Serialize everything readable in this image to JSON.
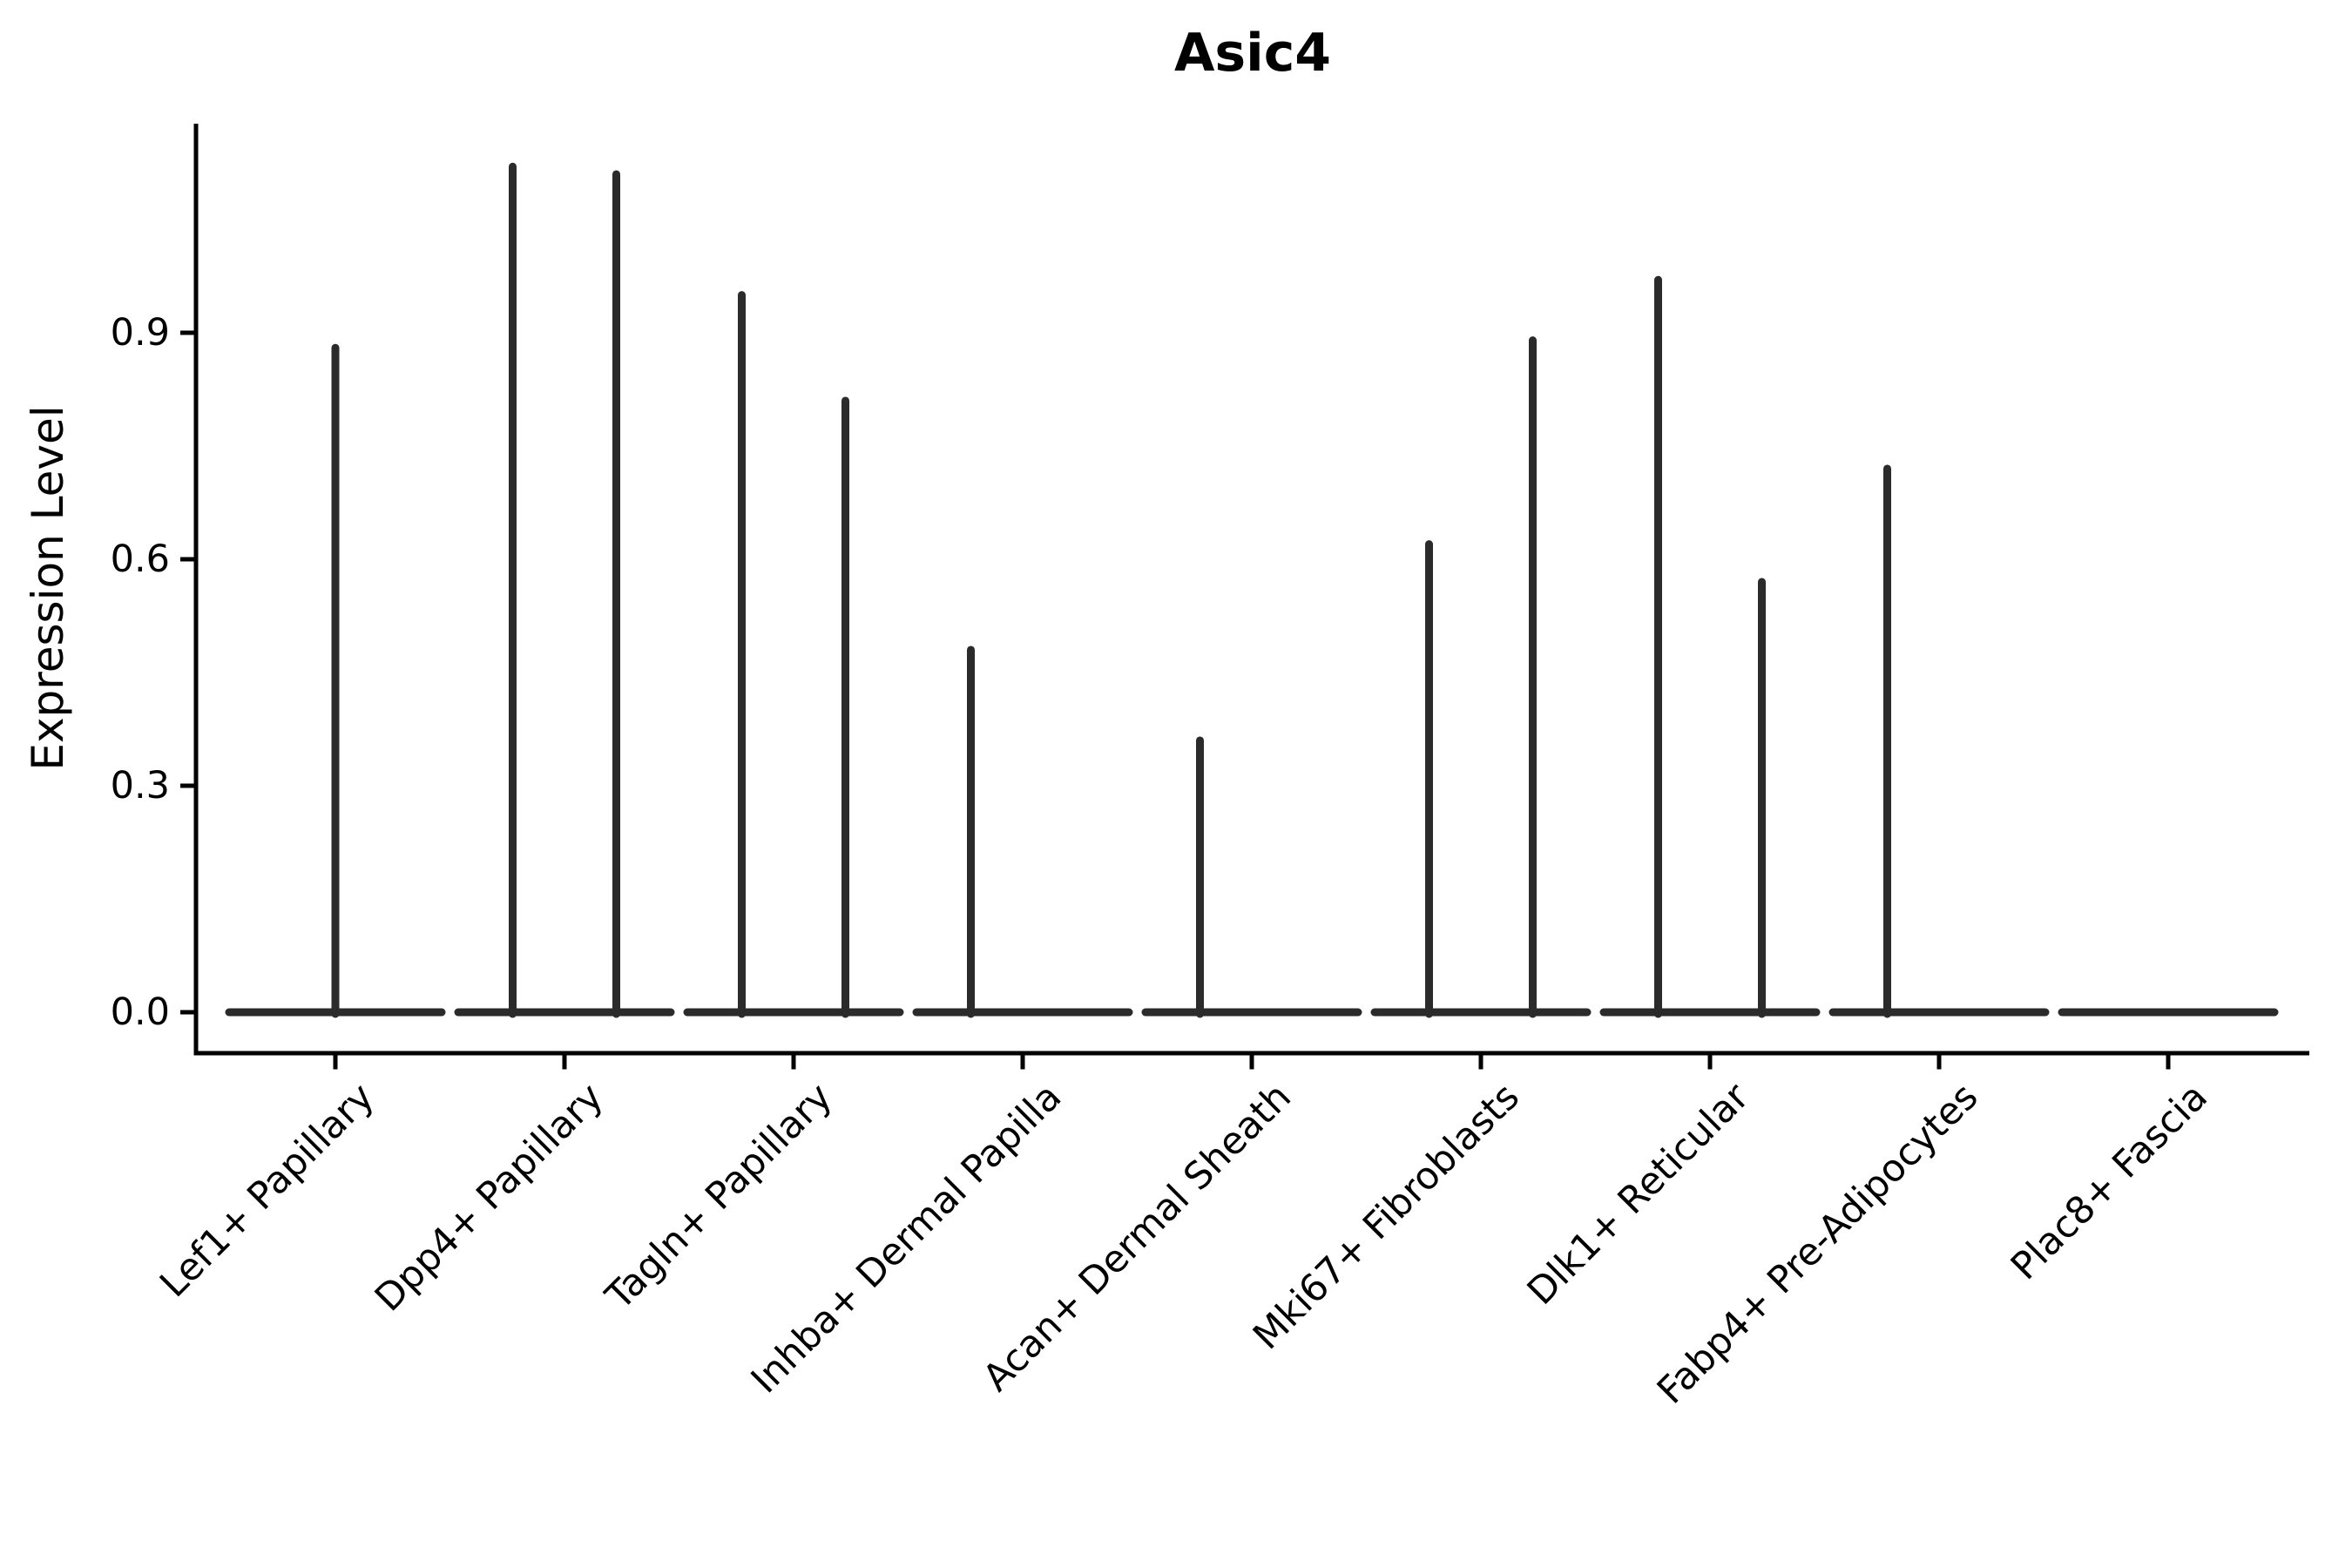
{
  "figure": {
    "kind": "violin-plot-figure",
    "background_color": "#ffffff"
  },
  "colors": {
    "axis": "#000000",
    "text": "#000000",
    "violin_stroke": "#2b2b2b"
  },
  "chart_data": {
    "type": "violin",
    "title": "Asic4",
    "xlabel": "",
    "ylabel": "Expression Level",
    "ylim": [
      -0.05,
      1.18
    ],
    "yticks": [
      0.0,
      0.3,
      0.6,
      0.9
    ],
    "ytick_labels": [
      "0.0",
      "0.3",
      "0.6",
      "0.9"
    ],
    "grid": false,
    "legend": "none",
    "categories": [
      "Lef1+ Papillary",
      "Dpp4+ Papillary",
      "Tagln+ Papillary",
      "Inhba+ Dermal Papilla",
      "Acan+ Dermal Sheath",
      "Mki67+ Fibroblasts",
      "Dlk1+ Reticular",
      "Fabp4+ Pre-Adipocytes",
      "Plac8+ Fascia"
    ],
    "violins": [
      {
        "category": "Lef1+ Papillary",
        "baseline_value": 0.0,
        "spikes": [
          {
            "position": "center",
            "max": 0.88
          }
        ]
      },
      {
        "category": "Dpp4+ Papillary",
        "baseline_value": 0.0,
        "spikes": [
          {
            "position": "left",
            "max": 1.12
          },
          {
            "position": "right",
            "max": 1.11
          }
        ]
      },
      {
        "category": "Tagln+ Papillary",
        "baseline_value": 0.0,
        "spikes": [
          {
            "position": "left",
            "max": 0.95
          },
          {
            "position": "right",
            "max": 0.81
          }
        ]
      },
      {
        "category": "Inhba+ Dermal Papilla",
        "baseline_value": 0.0,
        "spikes": [
          {
            "position": "left",
            "max": 0.48
          }
        ]
      },
      {
        "category": "Acan+ Dermal Sheath",
        "baseline_value": 0.0,
        "spikes": [
          {
            "position": "left",
            "max": 0.36
          }
        ]
      },
      {
        "category": "Mki67+ Fibroblasts",
        "baseline_value": 0.0,
        "spikes": [
          {
            "position": "left",
            "max": 0.62
          },
          {
            "position": "right",
            "max": 0.89
          }
        ]
      },
      {
        "category": "Dlk1+ Reticular",
        "baseline_value": 0.0,
        "spikes": [
          {
            "position": "left",
            "max": 0.97
          },
          {
            "position": "right",
            "max": 0.57
          }
        ]
      },
      {
        "category": "Fabp4+ Pre-Adipocytes",
        "baseline_value": 0.0,
        "spikes": [
          {
            "position": "left",
            "max": 0.72
          }
        ]
      },
      {
        "category": "Plac8+ Fascia",
        "baseline_value": 0.0,
        "spikes": []
      }
    ]
  }
}
